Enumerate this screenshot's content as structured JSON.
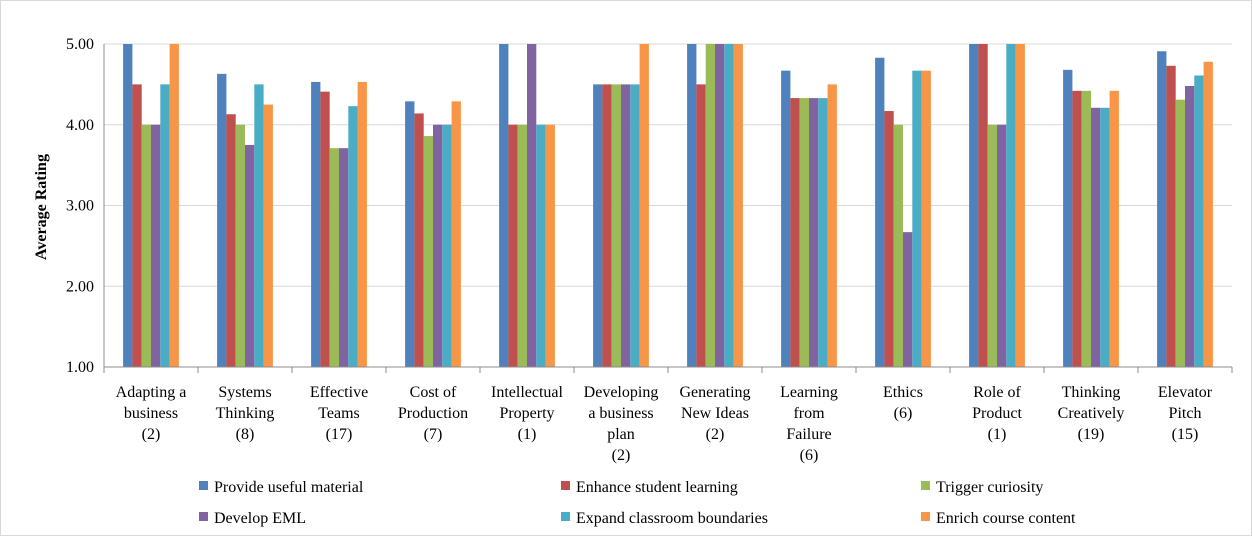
{
  "chart_data": {
    "type": "bar",
    "title": "",
    "xlabel": "",
    "ylabel": "Average Rating",
    "ylim": [
      1,
      5
    ],
    "yticks": [
      "1.00",
      "2.00",
      "3.00",
      "4.00",
      "5.00"
    ],
    "grid": "horizontal",
    "legend_position": "bottom",
    "categories": [
      [
        "Adapting a",
        "business",
        "(2)"
      ],
      [
        "Systems",
        "Thinking",
        "(8)"
      ],
      [
        "Effective",
        "Teams",
        "(17)"
      ],
      [
        "Cost of",
        "Production",
        "(7)"
      ],
      [
        "Intellectual",
        "Property",
        "(1)"
      ],
      [
        "Developing",
        "a business",
        "plan",
        "(2)"
      ],
      [
        "Generating",
        "New Ideas",
        "(2)"
      ],
      [
        "Learning",
        "from",
        "Failure",
        "(6)"
      ],
      [
        "Ethics",
        "(6)"
      ],
      [
        "Role of",
        "Product",
        "(1)"
      ],
      [
        "Thinking",
        "Creatively",
        "(19)"
      ],
      [
        "Elevator",
        "Pitch",
        "(15)"
      ]
    ],
    "series": [
      {
        "name": "Provide useful material",
        "color": "#4f81bd",
        "values": [
          5.0,
          4.63,
          4.53,
          4.29,
          5.0,
          4.5,
          5.0,
          4.67,
          4.83,
          5.0,
          4.68,
          4.91
        ]
      },
      {
        "name": "Enhance student learning",
        "color": "#c0504d",
        "values": [
          4.5,
          4.13,
          4.41,
          4.14,
          4.0,
          4.5,
          4.5,
          4.33,
          4.17,
          5.0,
          4.42,
          4.73
        ]
      },
      {
        "name": "Trigger curiosity",
        "color": "#9bbb59",
        "values": [
          4.0,
          4.0,
          3.71,
          3.86,
          4.0,
          4.5,
          5.0,
          4.33,
          4.0,
          4.0,
          4.42,
          4.31
        ]
      },
      {
        "name": "Develop EML",
        "color": "#8064a2",
        "values": [
          4.0,
          3.75,
          3.71,
          4.0,
          5.0,
          4.5,
          5.0,
          4.33,
          2.67,
          4.0,
          4.21,
          4.48
        ]
      },
      {
        "name": "Expand classroom boundaries",
        "color": "#4bacc6",
        "values": [
          4.5,
          4.5,
          4.23,
          4.0,
          4.0,
          4.5,
          5.0,
          4.33,
          4.67,
          5.0,
          4.21,
          4.61
        ]
      },
      {
        "name": "Enrich course content",
        "color": "#f79646",
        "values": [
          5.0,
          4.25,
          4.53,
          4.29,
          4.0,
          5.0,
          5.0,
          4.5,
          4.67,
          5.0,
          4.42,
          4.78
        ]
      }
    ]
  }
}
